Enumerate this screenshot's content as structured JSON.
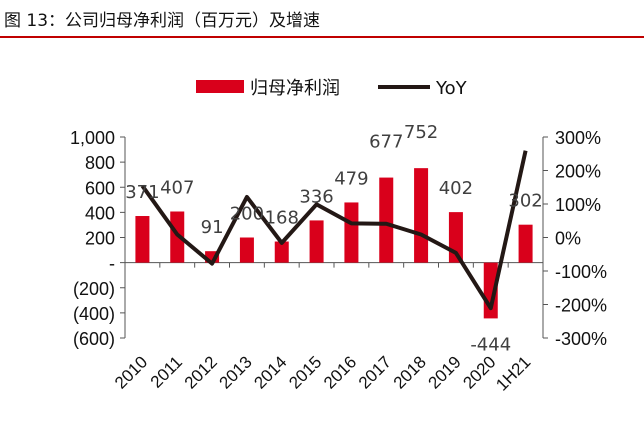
{
  "title": "图 13：公司归母净利润（百万元）及增速",
  "chart_data": {
    "type": "bar+line",
    "categories": [
      "2010",
      "2011",
      "2012",
      "2013",
      "2014",
      "2015",
      "2016",
      "2017",
      "2018",
      "2019",
      "2020",
      "1H21"
    ],
    "series": [
      {
        "name": "归母净利润",
        "type": "bar",
        "axis": "left",
        "color": "#d9001b",
        "values": [
          371,
          407,
          91,
          200,
          168,
          336,
          479,
          677,
          752,
          402,
          -444,
          302
        ]
      },
      {
        "name": "YoY",
        "type": "line",
        "axis": "right",
        "color": "#231815",
        "values": [
          154,
          9,
          -78,
          121,
          -16,
          99,
          42,
          41,
          9,
          -46,
          -211,
          259
        ]
      }
    ],
    "left_axis": {
      "ylim": [
        -600,
        1000
      ],
      "ticks": [
        "1,000",
        "800",
        "600",
        "400",
        "200",
        "-",
        "(200)",
        "(400)",
        "(600)"
      ]
    },
    "right_axis": {
      "ylim": [
        -300,
        300
      ],
      "unit": "%",
      "ticks": [
        "300%",
        "200%",
        "100%",
        "0%",
        "-100%",
        "-200%",
        "-300%"
      ]
    },
    "data_labels": [
      "371",
      "407",
      "91",
      "200",
      "168",
      "336",
      "479",
      "677",
      "752",
      "402",
      "-444",
      "302"
    ],
    "legend_position": "top",
    "grid": false
  }
}
